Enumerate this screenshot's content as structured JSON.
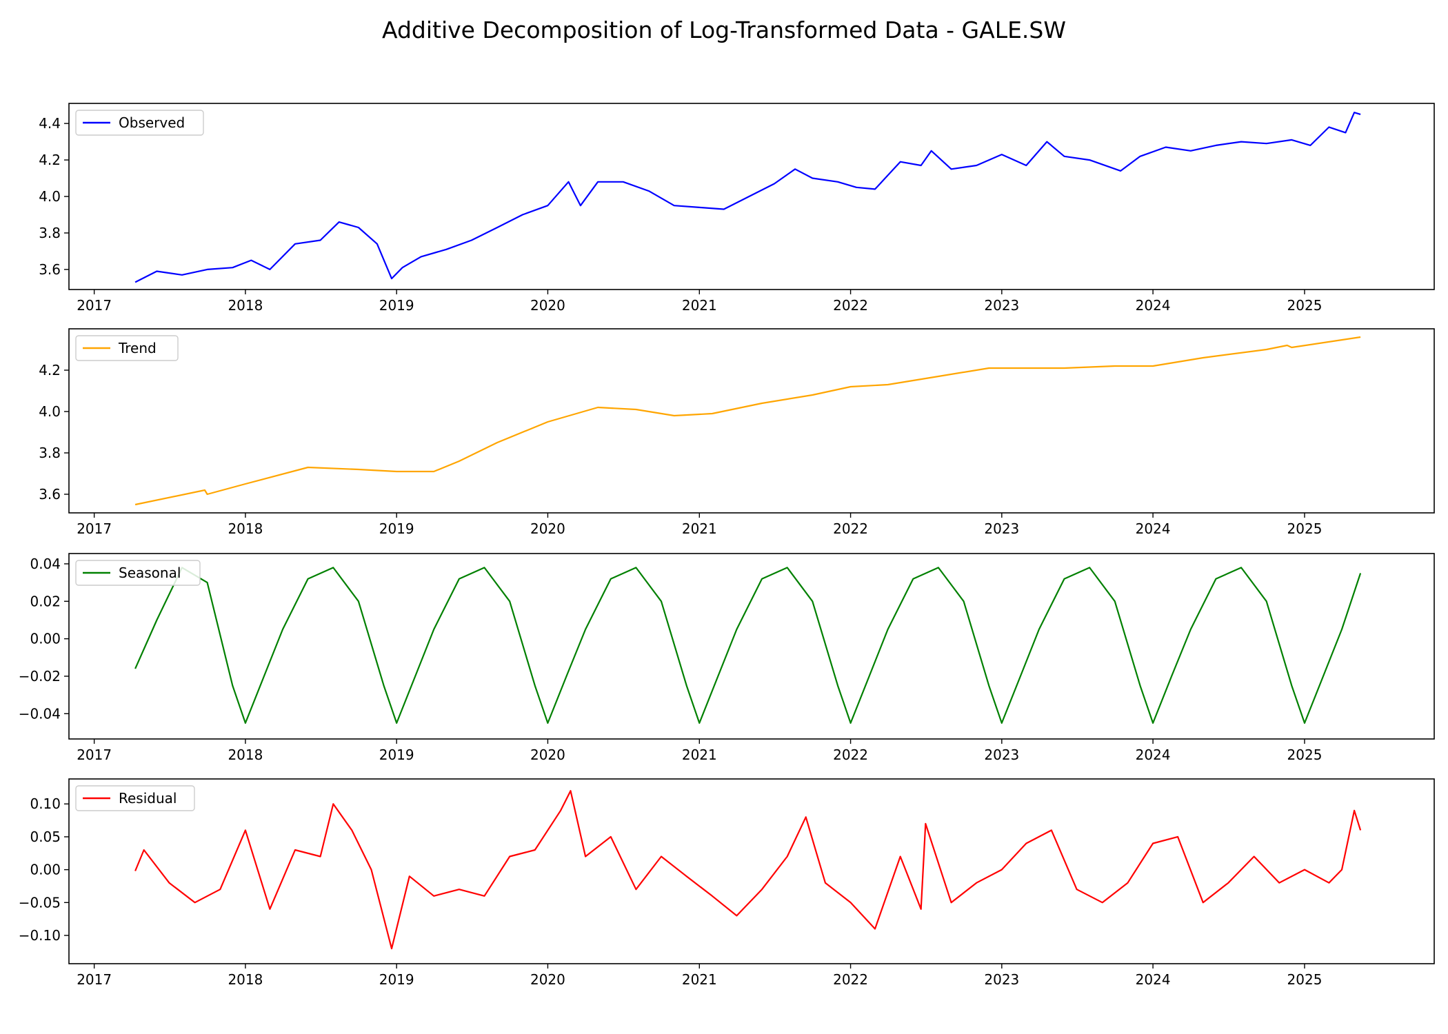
{
  "figure": {
    "title": "Additive Decomposition of Log-Transformed Data - GALE.SW"
  },
  "chart_data": [
    {
      "type": "line",
      "title": "",
      "xlabel": "",
      "ylabel": "",
      "x_range": [
        "2016-11-01",
        "2025-11-10"
      ],
      "x_ticks": [
        "2017",
        "2018",
        "2019",
        "2020",
        "2021",
        "2022",
        "2023",
        "2024",
        "2025"
      ],
      "ylim": [
        3.49,
        4.51
      ],
      "y_ticks": [
        "3.6",
        "3.8",
        "4.0",
        "4.2",
        "4.4"
      ],
      "legend_position": "upper-left",
      "grid": false,
      "series": [
        {
          "name": "Observed",
          "color": "#0000ff",
          "x": [
            "2017-04-10",
            "2017-06-01",
            "2017-08-01",
            "2017-10-01",
            "2017-12-01",
            "2018-01-15",
            "2018-03-01",
            "2018-05-01",
            "2018-07-01",
            "2018-08-15",
            "2018-10-01",
            "2018-11-15",
            "2018-12-20",
            "2019-01-15",
            "2019-03-01",
            "2019-05-01",
            "2019-07-01",
            "2019-09-01",
            "2019-11-01",
            "2020-01-01",
            "2020-02-20",
            "2020-03-20",
            "2020-05-01",
            "2020-07-01",
            "2020-09-01",
            "2020-11-01",
            "2021-01-01",
            "2021-03-01",
            "2021-05-01",
            "2021-07-01",
            "2021-08-20",
            "2021-10-01",
            "2021-12-01",
            "2022-01-15",
            "2022-03-01",
            "2022-05-01",
            "2022-06-20",
            "2022-07-15",
            "2022-09-01",
            "2022-11-01",
            "2023-01-01",
            "2023-03-01",
            "2023-04-20",
            "2023-06-01",
            "2023-08-01",
            "2023-10-15",
            "2023-12-01",
            "2024-02-01",
            "2024-04-01",
            "2024-06-01",
            "2024-08-01",
            "2024-10-01",
            "2024-12-01",
            "2025-01-15",
            "2025-03-01",
            "2025-04-10",
            "2025-05-01",
            "2025-05-16"
          ],
          "values": [
            3.53,
            3.59,
            3.57,
            3.6,
            3.61,
            3.65,
            3.6,
            3.74,
            3.76,
            3.86,
            3.83,
            3.74,
            3.55,
            3.61,
            3.67,
            3.71,
            3.76,
            3.83,
            3.9,
            3.95,
            4.08,
            3.95,
            4.08,
            4.08,
            4.03,
            3.95,
            3.94,
            3.93,
            4.0,
            4.07,
            4.15,
            4.1,
            4.08,
            4.05,
            4.04,
            4.19,
            4.17,
            4.25,
            4.15,
            4.17,
            4.23,
            4.17,
            4.3,
            4.22,
            4.2,
            4.14,
            4.22,
            4.27,
            4.25,
            4.28,
            4.3,
            4.29,
            4.31,
            4.28,
            4.38,
            4.35,
            4.46,
            4.45
          ]
        }
      ]
    },
    {
      "type": "line",
      "title": "",
      "xlabel": "",
      "ylabel": "",
      "x_range": [
        "2016-11-01",
        "2025-11-10"
      ],
      "x_ticks": [
        "2017",
        "2018",
        "2019",
        "2020",
        "2021",
        "2022",
        "2023",
        "2024",
        "2025"
      ],
      "ylim": [
        3.51,
        4.4
      ],
      "y_ticks": [
        "3.6",
        "3.8",
        "4.0",
        "4.2"
      ],
      "legend_position": "upper-left",
      "grid": false,
      "series": [
        {
          "name": "Trend",
          "color": "#ffa500",
          "x": [
            "2017-04-10",
            "2017-09-25",
            "2017-10-01",
            "2018-01-01",
            "2018-06-01",
            "2018-10-01",
            "2019-01-01",
            "2019-04-01",
            "2019-06-01",
            "2019-09-01",
            "2020-01-01",
            "2020-05-01",
            "2020-08-01",
            "2020-11-01",
            "2021-02-01",
            "2021-06-01",
            "2021-10-01",
            "2022-01-01",
            "2022-04-01",
            "2022-08-01",
            "2022-12-01",
            "2023-06-01",
            "2023-10-01",
            "2024-01-01",
            "2024-05-01",
            "2024-10-01",
            "2024-11-20",
            "2024-12-01",
            "2025-05-16"
          ],
          "values": [
            3.55,
            3.62,
            3.6,
            3.65,
            3.73,
            3.72,
            3.71,
            3.71,
            3.76,
            3.85,
            3.95,
            4.02,
            4.01,
            3.98,
            3.99,
            4.04,
            4.08,
            4.12,
            4.13,
            4.17,
            4.21,
            4.21,
            4.22,
            4.22,
            4.26,
            4.3,
            4.32,
            4.31,
            4.36
          ]
        }
      ]
    },
    {
      "type": "line",
      "title": "",
      "xlabel": "",
      "ylabel": "",
      "x_range": [
        "2016-11-01",
        "2025-11-10"
      ],
      "x_ticks": [
        "2017",
        "2018",
        "2019",
        "2020",
        "2021",
        "2022",
        "2023",
        "2024",
        "2025"
      ],
      "ylim": [
        -0.0535,
        0.0455
      ],
      "y_ticks": [
        "−0.04",
        "−0.02",
        "0.00",
        "0.02",
        "0.04"
      ],
      "legend_position": "upper-left",
      "grid": false,
      "series": [
        {
          "name": "Seasonal",
          "color": "#008000",
          "x": [
            "2017-04-10",
            "2017-06-01",
            "2017-08-01",
            "2017-10-01",
            "2017-12-01",
            "2018-01-01",
            "2018-02-15",
            "2018-04-01",
            "2018-06-01",
            "2018-08-01",
            "2018-10-01",
            "2018-12-01",
            "2019-01-01",
            "2019-02-15",
            "2019-04-01",
            "2019-06-01",
            "2019-08-01",
            "2019-10-01",
            "2019-12-01",
            "2020-01-01",
            "2020-02-15",
            "2020-04-01",
            "2020-06-01",
            "2020-08-01",
            "2020-10-01",
            "2020-12-01",
            "2021-01-01",
            "2021-02-15",
            "2021-04-01",
            "2021-06-01",
            "2021-08-01",
            "2021-10-01",
            "2021-12-01",
            "2022-01-01",
            "2022-02-15",
            "2022-04-01",
            "2022-06-01",
            "2022-08-01",
            "2022-10-01",
            "2022-12-01",
            "2023-01-01",
            "2023-02-15",
            "2023-04-01",
            "2023-06-01",
            "2023-08-01",
            "2023-10-01",
            "2023-12-01",
            "2024-01-01",
            "2024-02-15",
            "2024-04-01",
            "2024-06-01",
            "2024-08-01",
            "2024-10-01",
            "2024-12-01",
            "2025-01-01",
            "2025-02-15",
            "2025-04-01",
            "2025-05-16"
          ],
          "values": [
            -0.016,
            0.01,
            0.038,
            0.03,
            -0.025,
            -0.045,
            -0.02,
            0.005,
            0.032,
            0.038,
            0.02,
            -0.025,
            -0.045,
            -0.02,
            0.005,
            0.032,
            0.038,
            0.02,
            -0.025,
            -0.045,
            -0.02,
            0.005,
            0.032,
            0.038,
            0.02,
            -0.025,
            -0.045,
            -0.02,
            0.005,
            0.032,
            0.038,
            0.02,
            -0.025,
            -0.045,
            -0.02,
            0.005,
            0.032,
            0.038,
            0.02,
            -0.025,
            -0.045,
            -0.02,
            0.005,
            0.032,
            0.038,
            0.02,
            -0.025,
            -0.045,
            -0.02,
            0.005,
            0.032,
            0.038,
            0.02,
            -0.025,
            -0.045,
            -0.02,
            0.005,
            0.035
          ]
        }
      ]
    },
    {
      "type": "line",
      "title": "",
      "xlabel": "",
      "ylabel": "",
      "x_range": [
        "2016-11-01",
        "2025-11-10"
      ],
      "x_ticks": [
        "2017",
        "2018",
        "2019",
        "2020",
        "2021",
        "2022",
        "2023",
        "2024",
        "2025"
      ],
      "ylim": [
        -0.143,
        0.138
      ],
      "y_ticks": [
        "−0.10",
        "−0.05",
        "0.00",
        "0.05",
        "0.10"
      ],
      "legend_position": "upper-left",
      "grid": false,
      "series": [
        {
          "name": "Residual",
          "color": "#ff0000",
          "x": [
            "2017-04-10",
            "2017-05-01",
            "2017-07-01",
            "2017-09-01",
            "2017-11-01",
            "2018-01-01",
            "2018-03-01",
            "2018-05-01",
            "2018-07-01",
            "2018-08-01",
            "2018-09-15",
            "2018-11-01",
            "2018-12-20",
            "2019-02-01",
            "2019-04-01",
            "2019-06-01",
            "2019-08-01",
            "2019-10-01",
            "2019-12-01",
            "2020-02-01",
            "2020-02-25",
            "2020-04-01",
            "2020-06-01",
            "2020-08-01",
            "2020-10-01",
            "2020-12-01",
            "2021-02-01",
            "2021-04-01",
            "2021-06-01",
            "2021-08-01",
            "2021-09-15",
            "2021-11-01",
            "2022-01-01",
            "2022-03-01",
            "2022-05-01",
            "2022-06-20",
            "2022-07-01",
            "2022-09-01",
            "2022-11-01",
            "2023-01-01",
            "2023-03-01",
            "2023-05-01",
            "2023-07-01",
            "2023-09-01",
            "2023-11-01",
            "2024-01-01",
            "2024-03-01",
            "2024-05-01",
            "2024-07-01",
            "2024-09-01",
            "2024-11-01",
            "2025-01-01",
            "2025-03-01",
            "2025-04-01",
            "2025-05-01",
            "2025-05-16"
          ],
          "values": [
            -0.002,
            0.03,
            -0.02,
            -0.05,
            -0.03,
            0.06,
            -0.06,
            0.03,
            0.02,
            0.1,
            0.06,
            0.0,
            -0.12,
            -0.01,
            -0.04,
            -0.03,
            -0.04,
            0.02,
            0.03,
            0.09,
            0.12,
            0.02,
            0.05,
            -0.03,
            0.02,
            -0.01,
            -0.04,
            -0.07,
            -0.03,
            0.02,
            0.08,
            -0.02,
            -0.05,
            -0.09,
            0.02,
            -0.06,
            0.07,
            -0.05,
            -0.02,
            0.0,
            0.04,
            0.06,
            -0.03,
            -0.05,
            -0.02,
            0.04,
            0.05,
            -0.05,
            -0.02,
            0.02,
            -0.02,
            0.0,
            -0.02,
            0.0,
            0.09,
            0.06
          ]
        }
      ]
    }
  ]
}
